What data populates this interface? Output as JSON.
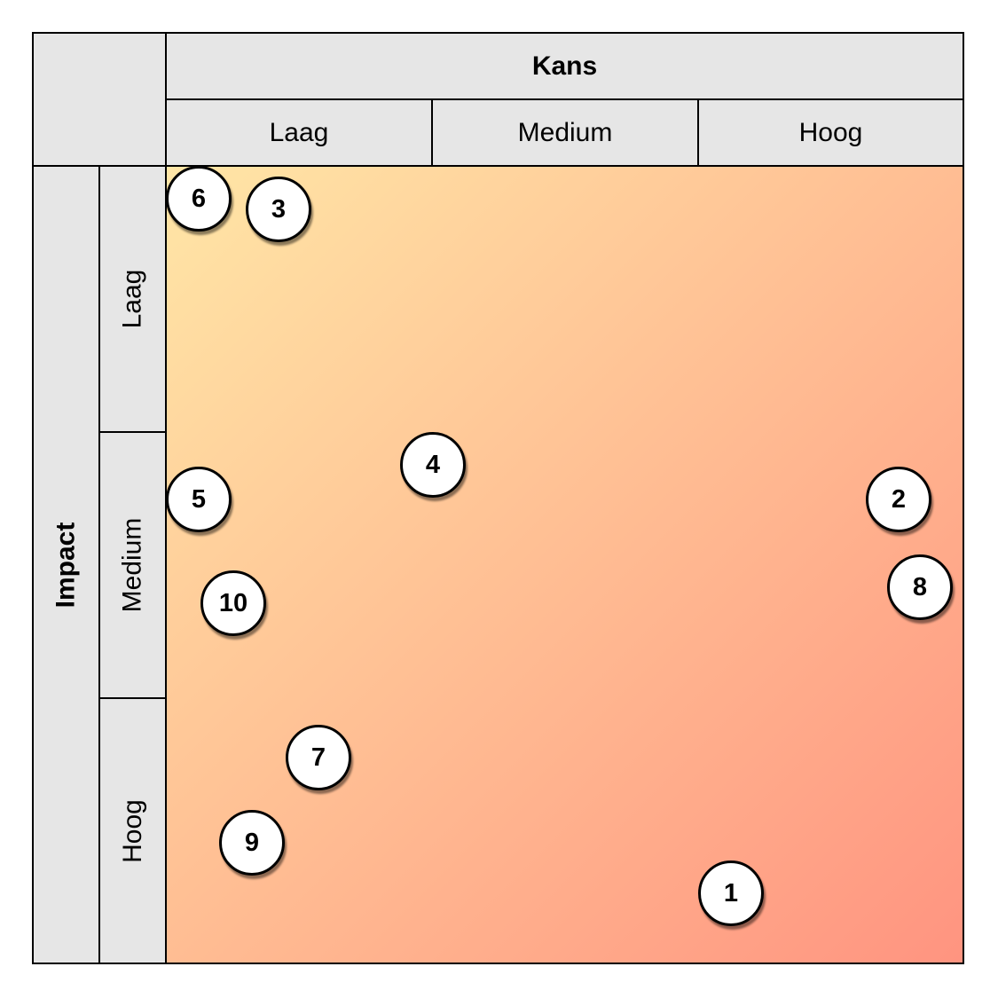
{
  "top_axis": {
    "title": "Kans",
    "levels": [
      "Laag",
      "Medium",
      "Hoog"
    ]
  },
  "side_axis": {
    "title": "Impact",
    "levels": [
      "Laag",
      "Medium",
      "Hoog"
    ]
  },
  "colors": {
    "header_bg": "#e6e6e6",
    "gradient_start": "#ffe6a6",
    "gradient_end": "#ff9480"
  },
  "markers": [
    {
      "label": "1",
      "kans": 2.12,
      "impact": 2.73
    },
    {
      "label": "2",
      "kans": 2.75,
      "impact": 1.25
    },
    {
      "label": "3",
      "kans": 0.42,
      "impact": 0.16
    },
    {
      "label": "4",
      "kans": 1.0,
      "impact": 1.12
    },
    {
      "label": "5",
      "kans": 0.12,
      "impact": 1.25
    },
    {
      "label": "6",
      "kans": 0.12,
      "impact": 0.12
    },
    {
      "label": "7",
      "kans": 0.57,
      "impact": 2.22
    },
    {
      "label": "8",
      "kans": 2.83,
      "impact": 1.58
    },
    {
      "label": "9",
      "kans": 0.32,
      "impact": 2.54
    },
    {
      "label": "10",
      "kans": 0.25,
      "impact": 1.64
    }
  ]
}
